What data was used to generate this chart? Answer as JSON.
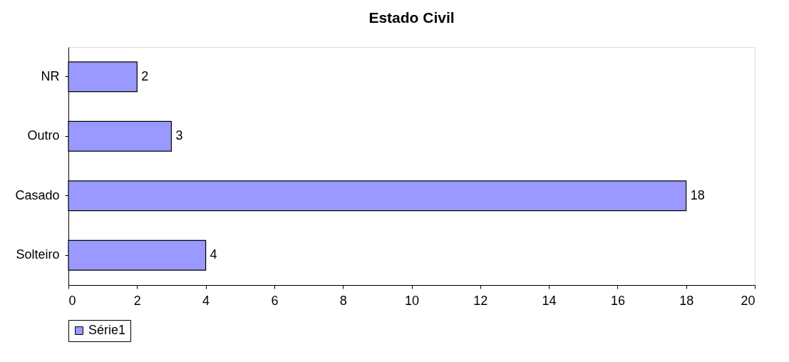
{
  "chart_data": {
    "type": "bar",
    "title": "Estado Civil",
    "orientation": "horizontal",
    "categories": [
      "NR",
      "Outro",
      "Casado",
      "Solteiro"
    ],
    "series": [
      {
        "name": "Série1",
        "color": "#9999ff",
        "values": [
          2,
          3,
          18,
          4
        ]
      }
    ],
    "xlim": [
      0,
      20
    ],
    "xticks": [
      0,
      2,
      4,
      6,
      8,
      10,
      12,
      14,
      16,
      18,
      20
    ],
    "grid": false,
    "legend": "bottom",
    "data_labels": true
  }
}
